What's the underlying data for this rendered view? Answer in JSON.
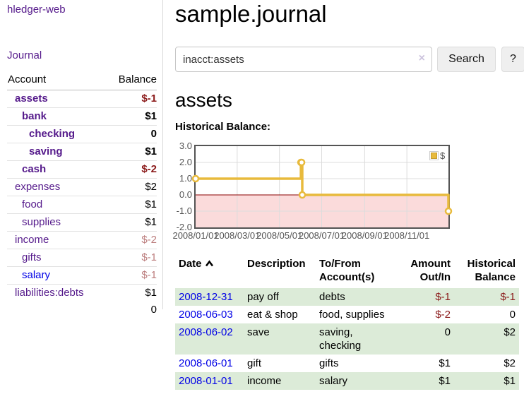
{
  "colors": {
    "link_purple": "#551a8b",
    "link_blue": "#0000e6",
    "negative_strong": "#8b1a1a",
    "negative_soft": "#bc7e7e",
    "row_stripe_green": "#dcebd8",
    "chart_gold": "#e8ba3c",
    "zero_line_red": "#8b0000",
    "negative_region_pink": "#fbdbdb",
    "grid_gray": "#dcdcdc",
    "plot_border": "#545454",
    "axis_text": "#545454"
  },
  "sidebar": {
    "app_title": "hledger-web",
    "journal_link": "Journal",
    "accounts_table": {
      "headers": {
        "account": "Account",
        "balance": "Balance"
      },
      "rows": [
        {
          "name": "assets",
          "depth": 1,
          "bold": true,
          "balance": "$-1",
          "negative": "strong"
        },
        {
          "name": "bank",
          "depth": 2,
          "bold": true,
          "balance": "$1",
          "negative": "none"
        },
        {
          "name": "checking",
          "depth": 3,
          "bold": true,
          "balance": "0",
          "negative": "none"
        },
        {
          "name": "saving",
          "depth": 3,
          "bold": true,
          "balance": "$1",
          "negative": "none"
        },
        {
          "name": "cash",
          "depth": 2,
          "bold": true,
          "balance": "$-2",
          "negative": "strong"
        },
        {
          "name": "expenses",
          "depth": 1,
          "bold": false,
          "balance": "$2",
          "negative": "none"
        },
        {
          "name": "food",
          "depth": 2,
          "bold": false,
          "balance": "$1",
          "negative": "none"
        },
        {
          "name": "supplies",
          "depth": 2,
          "bold": false,
          "balance": "$1",
          "negative": "none"
        },
        {
          "name": "income",
          "depth": 1,
          "bold": false,
          "balance": "$-2",
          "negative": "soft"
        },
        {
          "name": "gifts",
          "depth": 2,
          "bold": false,
          "balance": "$-1",
          "negative": "soft"
        },
        {
          "name": "salary",
          "depth": 2,
          "bold": false,
          "balance": "$-1",
          "negative": "soft",
          "link_color": "blue"
        },
        {
          "name": "liabilities:debts",
          "depth": 1,
          "bold": false,
          "balance": "$1",
          "negative": "none"
        }
      ],
      "total": "0"
    }
  },
  "main": {
    "title": "sample.journal",
    "search": {
      "value": "inacct:assets",
      "clear_icon": "×",
      "search_button": "Search",
      "help_button": "?"
    },
    "account_heading": "assets",
    "chart_title": "Historical Balance:"
  },
  "chart_data": {
    "type": "line",
    "title": "Historical Balance",
    "step": true,
    "series": [
      {
        "name": "$",
        "color": "#e8ba3c",
        "points": [
          [
            "2008-01-01",
            1
          ],
          [
            "2008-06-01",
            2
          ],
          [
            "2008-06-02",
            2
          ],
          [
            "2008-06-03",
            0
          ],
          [
            "2008-12-31",
            -1
          ]
        ]
      }
    ],
    "xlim": [
      "2008-01-01",
      "2008-12-31"
    ],
    "ylim": [
      -2,
      3
    ],
    "y_ticks": [
      3,
      2,
      1,
      0,
      -1,
      -2
    ],
    "x_ticks": [
      {
        "date": "2008-01-01",
        "label": "2008/01/01"
      },
      {
        "date": "2008-03-01",
        "label": "2008/03/01"
      },
      {
        "date": "2008-05-01",
        "label": "2008/05/01"
      },
      {
        "date": "2008-07-01",
        "label": "2008/07/01"
      },
      {
        "date": "2008-09-01",
        "label": "2008/09/01"
      },
      {
        "date": "2008-11-01",
        "label": "2008/11/01"
      }
    ],
    "legend": {
      "label": "$",
      "position": "top-right"
    },
    "grid": true,
    "negative_region_fill": "#fbdbdb",
    "zero_line_color": "#8b0000"
  },
  "register": {
    "headers": [
      {
        "label": "Date",
        "align": "left",
        "sort_icon": "chevron-up"
      },
      {
        "label": "Description",
        "align": "left"
      },
      {
        "label": "To/From Account(s)",
        "align": "left"
      },
      {
        "label": "Amount Out/In",
        "align": "right"
      },
      {
        "label": "Historical Balance",
        "align": "right"
      }
    ],
    "rows": [
      {
        "date": "2008-12-31",
        "description": "pay off",
        "accounts": "debts",
        "amount": "$-1",
        "amount_negative": true,
        "balance": "$-1",
        "balance_negative": true
      },
      {
        "date": "2008-06-03",
        "description": "eat & shop",
        "accounts": "food, supplies",
        "amount": "$-2",
        "amount_negative": true,
        "balance": "0",
        "balance_negative": false
      },
      {
        "date": "2008-06-02",
        "description": "save",
        "accounts": "saving, checking",
        "amount": "0",
        "amount_negative": false,
        "balance": "$2",
        "balance_negative": false
      },
      {
        "date": "2008-06-01",
        "description": "gift",
        "accounts": "gifts",
        "amount": "$1",
        "amount_negative": false,
        "balance": "$2",
        "balance_negative": false
      },
      {
        "date": "2008-01-01",
        "description": "income",
        "accounts": "salary",
        "amount": "$1",
        "amount_negative": false,
        "balance": "$1",
        "balance_negative": false
      }
    ]
  }
}
